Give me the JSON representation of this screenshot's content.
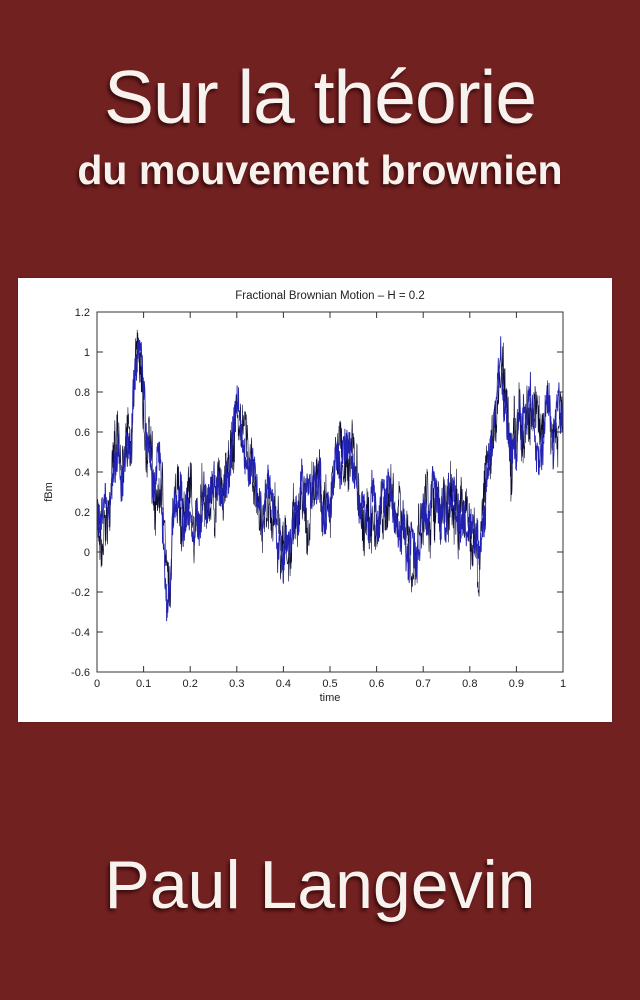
{
  "cover": {
    "title_line1": "Sur la théorie",
    "title_line2": "du mouvement brownien",
    "author": "Paul Langevin",
    "colors": {
      "background": "#722121",
      "panel": "#ffffff",
      "text": "#f7f2ee"
    }
  },
  "chart_data": {
    "type": "line",
    "title": "Fractional Brownian Motion – H = 0.2",
    "xlabel": "time",
    "ylabel": "fBm",
    "xlim": [
      0,
      1
    ],
    "ylim": [
      -0.6,
      1.2
    ],
    "x_ticks": [
      "0",
      "0.1",
      "0.2",
      "0.3",
      "0.4",
      "0.5",
      "0.6",
      "0.7",
      "0.8",
      "0.9",
      "1"
    ],
    "x_tick_values": [
      0,
      0.1,
      0.2,
      0.3,
      0.4,
      0.5,
      0.6,
      0.7,
      0.8,
      0.9,
      1
    ],
    "y_ticks": [
      "-0.6",
      "-0.4",
      "-0.2",
      "0",
      "0.2",
      "0.4",
      "0.6",
      "0.8",
      "1",
      "1.2"
    ],
    "y_tick_values": [
      -0.6,
      -0.4,
      -0.2,
      0,
      0.2,
      0.4,
      0.6,
      0.8,
      1,
      1.2
    ],
    "grid": false,
    "legend": null,
    "line_color": "#2222b2",
    "line_color_dark": "#0d0d33",
    "axis_color": "#333333",
    "anchors": [
      [
        0,
        0.08
      ],
      [
        0.005,
        0.18
      ],
      [
        0.015,
        0.12
      ],
      [
        0.025,
        0.28
      ],
      [
        0.035,
        0.35
      ],
      [
        0.045,
        0.52
      ],
      [
        0.055,
        0.32
      ],
      [
        0.065,
        0.45
      ],
      [
        0.075,
        0.62
      ],
      [
        0.085,
        0.88
      ],
      [
        0.09,
        1.0
      ],
      [
        0.095,
        0.9
      ],
      [
        0.105,
        0.62
      ],
      [
        0.115,
        0.4
      ],
      [
        0.125,
        0.28
      ],
      [
        0.135,
        0.42
      ],
      [
        0.145,
        0.02
      ],
      [
        0.15,
        -0.24
      ],
      [
        0.155,
        -0.12
      ],
      [
        0.165,
        0.16
      ],
      [
        0.175,
        0.26
      ],
      [
        0.185,
        0.18
      ],
      [
        0.195,
        0.3
      ],
      [
        0.205,
        0.18
      ],
      [
        0.215,
        0.14
      ],
      [
        0.225,
        0.26
      ],
      [
        0.235,
        0.22
      ],
      [
        0.245,
        0.3
      ],
      [
        0.255,
        0.26
      ],
      [
        0.265,
        0.32
      ],
      [
        0.275,
        0.38
      ],
      [
        0.285,
        0.48
      ],
      [
        0.295,
        0.62
      ],
      [
        0.3,
        0.78
      ],
      [
        0.305,
        0.66
      ],
      [
        0.315,
        0.5
      ],
      [
        0.325,
        0.38
      ],
      [
        0.335,
        0.33
      ],
      [
        0.345,
        0.28
      ],
      [
        0.355,
        0.24
      ],
      [
        0.365,
        0.28
      ],
      [
        0.375,
        0.22
      ],
      [
        0.385,
        0.12
      ],
      [
        0.395,
        0.0
      ],
      [
        0.4,
        -0.12
      ],
      [
        0.405,
        -0.02
      ],
      [
        0.415,
        0.14
      ],
      [
        0.425,
        0.24
      ],
      [
        0.435,
        0.28
      ],
      [
        0.445,
        0.26
      ],
      [
        0.455,
        0.22
      ],
      [
        0.465,
        0.3
      ],
      [
        0.475,
        0.33
      ],
      [
        0.485,
        0.28
      ],
      [
        0.495,
        0.25
      ],
      [
        0.505,
        0.34
      ],
      [
        0.515,
        0.4
      ],
      [
        0.525,
        0.44
      ],
      [
        0.535,
        0.5
      ],
      [
        0.545,
        0.44
      ],
      [
        0.555,
        0.36
      ],
      [
        0.565,
        0.26
      ],
      [
        0.575,
        0.22
      ],
      [
        0.585,
        0.18
      ],
      [
        0.595,
        0.24
      ],
      [
        0.605,
        0.2
      ],
      [
        0.615,
        0.26
      ],
      [
        0.625,
        0.34
      ],
      [
        0.635,
        0.28
      ],
      [
        0.645,
        0.2
      ],
      [
        0.655,
        0.16
      ],
      [
        0.665,
        0.08
      ],
      [
        0.675,
        -0.02
      ],
      [
        0.68,
        -0.1
      ],
      [
        0.69,
        0.06
      ],
      [
        0.7,
        0.12
      ],
      [
        0.71,
        0.18
      ],
      [
        0.72,
        0.24
      ],
      [
        0.73,
        0.28
      ],
      [
        0.74,
        0.24
      ],
      [
        0.75,
        0.18
      ],
      [
        0.76,
        0.24
      ],
      [
        0.77,
        0.2
      ],
      [
        0.78,
        0.14
      ],
      [
        0.79,
        0.18
      ],
      [
        0.8,
        0.12
      ],
      [
        0.81,
        0.06
      ],
      [
        0.82,
        0.02
      ],
      [
        0.83,
        0.18
      ],
      [
        0.84,
        0.38
      ],
      [
        0.85,
        0.58
      ],
      [
        0.86,
        0.82
      ],
      [
        0.865,
        0.98
      ],
      [
        0.87,
        0.82
      ],
      [
        0.88,
        0.58
      ],
      [
        0.89,
        0.5
      ],
      [
        0.9,
        0.6
      ],
      [
        0.91,
        0.68
      ],
      [
        0.92,
        0.62
      ],
      [
        0.93,
        0.72
      ],
      [
        0.94,
        0.58
      ],
      [
        0.95,
        0.54
      ],
      [
        0.96,
        0.64
      ],
      [
        0.97,
        0.68
      ],
      [
        0.98,
        0.58
      ],
      [
        0.99,
        0.66
      ],
      [
        1,
        0.7
      ]
    ],
    "noise": {
      "seed": 7,
      "points": 1600,
      "amplitude": 0.16,
      "dark_scale": 1.3
    }
  }
}
